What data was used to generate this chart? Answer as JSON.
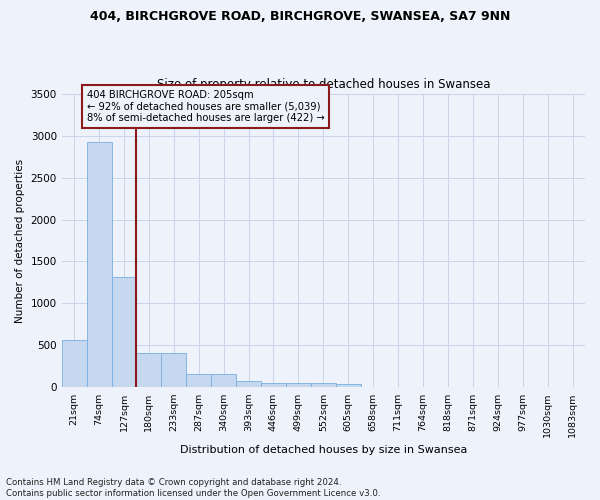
{
  "title1": "404, BIRCHGROVE ROAD, BIRCHGROVE, SWANSEA, SA7 9NN",
  "title2": "Size of property relative to detached houses in Swansea",
  "xlabel": "Distribution of detached houses by size in Swansea",
  "ylabel": "Number of detached properties",
  "bar_values": [
    570,
    2920,
    1320,
    410,
    410,
    155,
    155,
    80,
    55,
    55,
    55,
    40,
    0,
    0,
    0,
    0,
    0,
    0,
    0,
    0,
    0
  ],
  "bin_labels": [
    "21sqm",
    "74sqm",
    "127sqm",
    "180sqm",
    "233sqm",
    "287sqm",
    "340sqm",
    "393sqm",
    "446sqm",
    "499sqm",
    "552sqm",
    "605sqm",
    "658sqm",
    "711sqm",
    "764sqm",
    "818sqm",
    "871sqm",
    "924sqm",
    "977sqm",
    "1030sqm",
    "1083sqm"
  ],
  "bar_color": "#c5d8f0",
  "bar_edge_color": "#7aafe0",
  "grid_color": "#c8d4e8",
  "vline_x": 3.0,
  "vline_color": "#8b1a1a",
  "annotation_text": "404 BIRCHGROVE ROAD: 205sqm\n← 92% of detached houses are smaller (5,039)\n8% of semi-detached houses are larger (422) →",
  "annotation_box_color": "#8b1a1a",
  "ylim": [
    0,
    3500
  ],
  "yticks": [
    0,
    500,
    1000,
    1500,
    2000,
    2500,
    3000,
    3500
  ],
  "footnote": "Contains HM Land Registry data © Crown copyright and database right 2024.\nContains public sector information licensed under the Open Government Licence v3.0.",
  "bg_color": "#eef2fa",
  "axes_bg_color": "#eef2fa"
}
